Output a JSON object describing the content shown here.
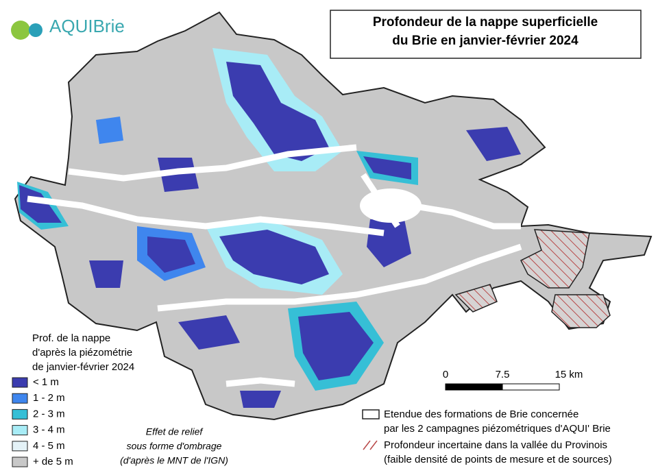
{
  "logo": {
    "text": "AQUIBrie"
  },
  "title": {
    "lines": [
      "Profondeur de la nappe superficielle",
      "du Brie en janvier-février 2024"
    ]
  },
  "legend": {
    "title_lines": [
      "Prof. de la nappe",
      "d'après la piézométrie",
      "de janvier-février 2024"
    ],
    "items": [
      {
        "label": "< 1 m",
        "color": "#3b3caf"
      },
      {
        "label": "1 - 2 m",
        "color": "#3f86ee"
      },
      {
        "label": "2 - 3 m",
        "color": "#36bfd6"
      },
      {
        "label": "3 - 4 m",
        "color": "#a8ecf6"
      },
      {
        "label": "4 - 5 m",
        "color": "#e4f2f7"
      },
      {
        "label": "+ de 5 m",
        "color": "#c8c8c8"
      }
    ]
  },
  "relief_note": {
    "lines": [
      "Effet de relief",
      "sous forme d'ombrage",
      "(d'après le MNT de l'IGN)"
    ]
  },
  "scale": {
    "labels": [
      "0",
      "7.5",
      "15 km"
    ]
  },
  "extent_legend": {
    "lines": [
      "Etendue des formations de Brie concernée",
      "par les 2 campagnes piézométriques d'AQUI' Brie"
    ]
  },
  "uncertain_legend": {
    "lines": [
      "Profondeur incertaine dans la vallée du Provinois",
      "(faible densité de points de mesure et de sources)"
    ]
  }
}
